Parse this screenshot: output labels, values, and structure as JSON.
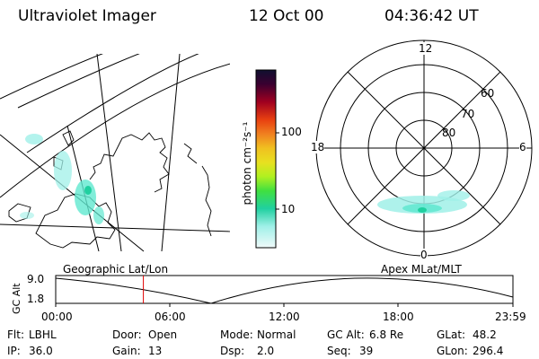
{
  "header": {
    "instrument": "Ultraviolet Imager",
    "date": "12 Oct 00",
    "time": "04:36:42 UT"
  },
  "colorbar": {
    "unit_label": "photon cm⁻²s⁻¹",
    "tick_labels": [
      "100",
      "10"
    ],
    "colors": [
      "#101030",
      "#3a0030",
      "#6a0040",
      "#a00020",
      "#d01010",
      "#e84010",
      "#f08020",
      "#f0c020",
      "#e8e020",
      "#b0f020",
      "#40e040",
      "#20d0a0",
      "#60e8d0",
      "#a0f0e8",
      "#e0f8f8"
    ]
  },
  "geo_panel": {
    "caption": "Geographic Lat/Lon"
  },
  "polar_panel": {
    "caption": "Apex MLat/MLT",
    "mlt_labels": {
      "top": "12",
      "left": "18",
      "right": "6",
      "bottom": "0"
    },
    "lat_labels": [
      "60",
      "70",
      "80"
    ]
  },
  "altitude_plot": {
    "ylabel": "GC Alt",
    "yticks": [
      "9.0",
      "1.8"
    ],
    "xticks": [
      "00:00",
      "06:00",
      "12:00",
      "18:00",
      "23:59"
    ],
    "marker_time": "04:36",
    "marker_color": "#e00000"
  },
  "info": {
    "flt_label": "Flt:",
    "flt_value": "LBHL",
    "ip_label": "IP:",
    "ip_value": "36.0",
    "door_label": "Door:",
    "door_value": "Open",
    "gain_label": "Gain:",
    "gain_value": "13",
    "mode_label": "Mode:",
    "mode_value": "Normal",
    "dsp_label": "Dsp:",
    "dsp_value": "2.0",
    "gcalt_label": "GC Alt:",
    "gcalt_value": "6.8 Re",
    "seq_label": "Seq:",
    "seq_value": "39",
    "glat_label": "GLat:",
    "glat_value": "48.2",
    "glon_label": "GLon:",
    "glon_value": "296.4"
  }
}
